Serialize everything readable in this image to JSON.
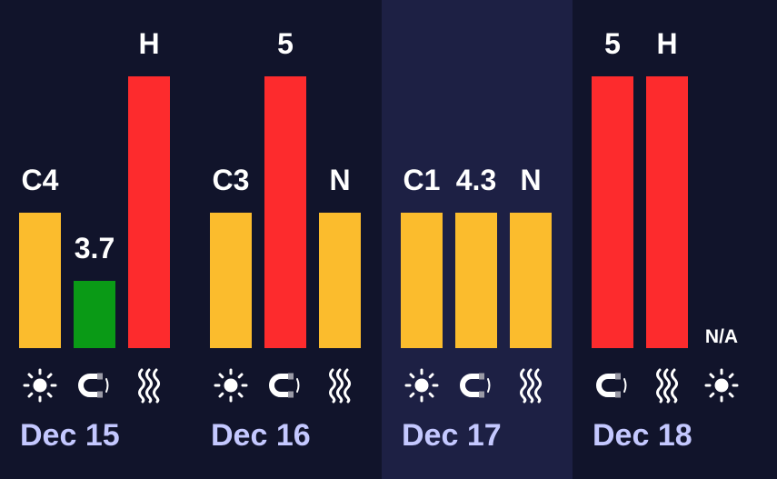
{
  "colors": {
    "background": "#11142b",
    "highlight_column": "#1d2044",
    "yellow": "#fbbc2d",
    "green": "#0a9a16",
    "red": "#fd2b2d",
    "date_text": "#c4c8ff",
    "label_text": "#ffffff"
  },
  "days": [
    {
      "date": "Dec 15",
      "highlight": false,
      "items": [
        {
          "icon": "sun-icon",
          "label": "C4",
          "level": "medium",
          "color": "yellow"
        },
        {
          "icon": "magnet-icon",
          "label": "3.7",
          "level": "low",
          "color": "green"
        },
        {
          "icon": "heat-waves-icon",
          "label": "H",
          "level": "high",
          "color": "red"
        }
      ]
    },
    {
      "date": "Dec 16",
      "highlight": false,
      "items": [
        {
          "icon": "sun-icon",
          "label": "C3",
          "level": "medium",
          "color": "yellow"
        },
        {
          "icon": "magnet-icon",
          "label": "5",
          "level": "high",
          "color": "red"
        },
        {
          "icon": "heat-waves-icon",
          "label": "N",
          "level": "medium",
          "color": "yellow"
        }
      ]
    },
    {
      "date": "Dec 17",
      "highlight": true,
      "items": [
        {
          "icon": "sun-icon",
          "label": "C1",
          "level": "medium",
          "color": "yellow"
        },
        {
          "icon": "magnet-icon",
          "label": "4.3",
          "level": "medium",
          "color": "yellow"
        },
        {
          "icon": "heat-waves-icon",
          "label": "N",
          "level": "medium",
          "color": "yellow"
        }
      ]
    },
    {
      "date": "Dec 18",
      "highlight": false,
      "items": [
        {
          "icon": "magnet-icon",
          "label": "5",
          "level": "high",
          "color": "red"
        },
        {
          "icon": "heat-waves-icon",
          "label": "H",
          "level": "high",
          "color": "red"
        },
        {
          "icon": "sun-icon",
          "label": "N/A",
          "level": "none",
          "color": null
        }
      ]
    }
  ]
}
